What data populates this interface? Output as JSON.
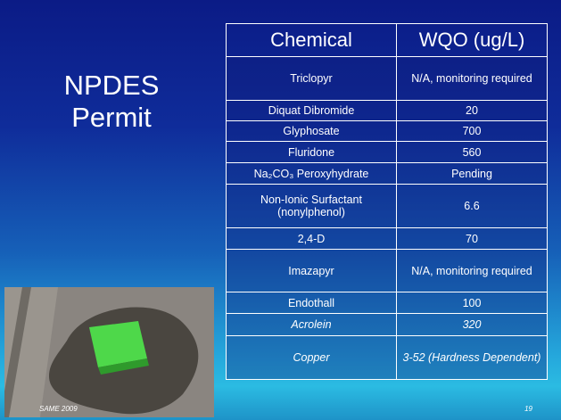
{
  "slide": {
    "title": "NPDES Permit",
    "table": {
      "header": [
        "Chemical",
        "WQO (ug/L)"
      ],
      "rows": [
        [
          "Triclopyr",
          "N/A, monitoring required"
        ],
        [
          "Diquat Dibromide",
          "20"
        ],
        [
          "Glyphosate",
          "700"
        ],
        [
          "Fluridone",
          "560"
        ],
        [
          "Na₂CO₃ Peroxyhydrate",
          "Pending"
        ],
        [
          "Non-Ionic Surfactant (nonylphenol)",
          "6.6"
        ],
        [
          "2,4-D",
          "70"
        ],
        [
          "Imazapyr",
          "N/A, monitoring required"
        ],
        [
          "Endothall",
          "100"
        ],
        [
          "Acrolein",
          "320"
        ],
        [
          "Copper",
          "3-52 (Hardness Dependent)"
        ]
      ],
      "italic_rows": [
        9,
        10
      ]
    },
    "footer": {
      "left": "SAME 2009",
      "right": "19"
    }
  }
}
